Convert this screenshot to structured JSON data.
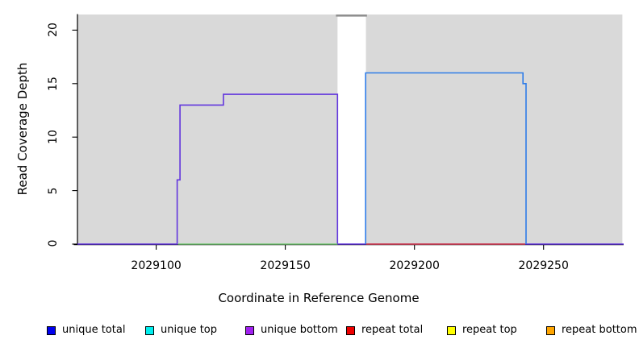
{
  "chart_data": {
    "type": "line",
    "title": "",
    "xlabel": "Coordinate in Reference Genome",
    "ylabel": "Read Coverage Depth",
    "x_ticks": [
      "2029100",
      "2029150",
      "2029200",
      "2029250"
    ],
    "y_ticks": [
      "0",
      "5",
      "10",
      "15",
      "20"
    ],
    "xlim": [
      2029069.5,
      2029281.0
    ],
    "ylim": [
      0,
      21.5
    ],
    "grid": false,
    "plot_background_color": "#ffffff",
    "alignment_blocks": {
      "color": "#d9d9d9",
      "ranges": [
        {
          "x0": 2029069.5,
          "x1": 2029170.2
        },
        {
          "x0": 2029181.2,
          "x1": 2029280.5
        }
      ]
    },
    "gap_marker": {
      "color": "#8f8f8f",
      "x0": 2029169.6,
      "x1": 2029181.6
    },
    "series": [
      {
        "name": "unique bottom coverage",
        "color": "#6236dd",
        "points": [
          [
            2029069.5,
            0
          ],
          [
            2029108.1,
            0
          ],
          [
            2029108.1,
            6
          ],
          [
            2029109.2,
            6
          ],
          [
            2029109.2,
            13
          ],
          [
            2029126.0,
            13
          ],
          [
            2029126.0,
            14
          ],
          [
            2029170.2,
            14
          ],
          [
            2029170.2,
            0
          ],
          [
            2029281.0,
            0
          ]
        ]
      },
      {
        "name": "green baseline segment",
        "color": "#77c877",
        "points": [
          [
            2029108.5,
            0
          ],
          [
            2029170.2,
            0
          ]
        ]
      },
      {
        "name": "unique top coverage",
        "color": "#2e7ce8",
        "points": [
          [
            2029181.1,
            0
          ],
          [
            2029181.1,
            16
          ],
          [
            2029242.0,
            16
          ],
          [
            2029242.0,
            15
          ],
          [
            2029243.2,
            15
          ],
          [
            2029243.2,
            0
          ]
        ]
      },
      {
        "name": "repeat baseline segment",
        "color": "#dd4444",
        "points": [
          [
            2029181.3,
            0
          ],
          [
            2029242.9,
            0
          ]
        ]
      }
    ],
    "legend": [
      {
        "label": "unique total",
        "color": "#0000ee"
      },
      {
        "label": "unique top",
        "color": "#00eeee"
      },
      {
        "label": "unique bottom",
        "color": "#a020f0"
      },
      {
        "label": "repeat total",
        "color": "#ee0000"
      },
      {
        "label": "repeat top",
        "color": "#ffff00"
      },
      {
        "label": "repeat bottom",
        "color": "#ffa500"
      }
    ],
    "legend_position": "bottom"
  }
}
